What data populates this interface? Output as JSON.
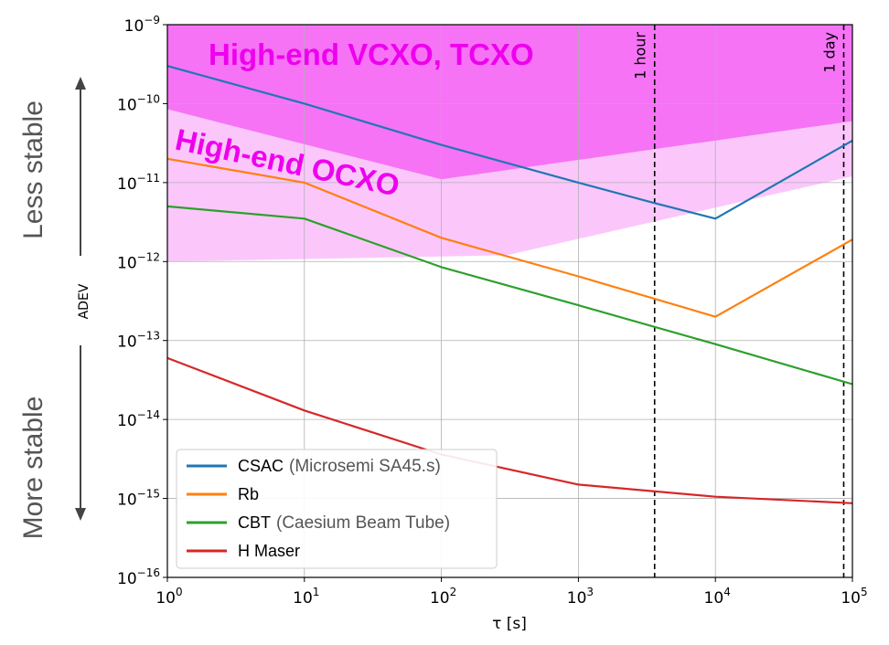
{
  "chart_data": {
    "type": "line",
    "xlabel": "τ [s]",
    "ylabel": "ADEV",
    "x_scale": "log",
    "y_scale": "log",
    "xlim": [
      1,
      100000
    ],
    "ylim": [
      1e-16,
      1e-09
    ],
    "grid": true,
    "legend_position": "lower-left",
    "x_ticks": [
      1,
      10,
      100,
      1000,
      10000,
      100000
    ],
    "x_tick_labels": [
      {
        "base": "10",
        "exp": "0"
      },
      {
        "base": "10",
        "exp": "1"
      },
      {
        "base": "10",
        "exp": "2"
      },
      {
        "base": "10",
        "exp": "3"
      },
      {
        "base": "10",
        "exp": "4"
      },
      {
        "base": "10",
        "exp": "5"
      }
    ],
    "y_ticks": [
      1e-16,
      1e-15,
      1e-14,
      1e-13,
      1e-12,
      1e-11,
      1e-10,
      1e-09
    ],
    "y_tick_labels": [
      {
        "base": "10",
        "exp": "−16"
      },
      {
        "base": "10",
        "exp": "−15"
      },
      {
        "base": "10",
        "exp": "−14"
      },
      {
        "base": "10",
        "exp": "−13"
      },
      {
        "base": "10",
        "exp": "−12"
      },
      {
        "base": "10",
        "exp": "−11"
      },
      {
        "base": "10",
        "exp": "−10"
      },
      {
        "base": "10",
        "exp": "−9"
      }
    ],
    "series": [
      {
        "name": "CSAC",
        "legend_note": "(Microsemi SA45.s)",
        "color": "#1f77b4",
        "x": [
          1,
          10,
          100,
          1000,
          3600,
          10000,
          100000
        ],
        "y": [
          3e-10,
          1e-10,
          3e-11,
          1e-11,
          5.5e-12,
          3.5e-12,
          3.4e-11
        ]
      },
      {
        "name": "Rb",
        "legend_note": "",
        "color": "#ff7f0e",
        "x": [
          1,
          10,
          100,
          1000,
          10000,
          100000
        ],
        "y": [
          2e-11,
          1e-11,
          2e-12,
          6.5e-13,
          2e-13,
          1.9e-12
        ]
      },
      {
        "name": "CBT",
        "legend_note": "(Caesium Beam Tube)",
        "color": "#2ca02c",
        "x": [
          1,
          10,
          100,
          1000,
          10000,
          100000
        ],
        "y": [
          5e-12,
          3.5e-12,
          8.5e-13,
          2.8e-13,
          9e-14,
          2.8e-14
        ]
      },
      {
        "name": "H Maser",
        "legend_note": "",
        "color": "#d62728",
        "x": [
          1,
          10,
          100,
          1000,
          10000,
          100000
        ],
        "y": [
          6e-14,
          1.3e-14,
          3.6e-15,
          1.5e-15,
          1.05e-15,
          8.7e-16
        ]
      }
    ],
    "regions": [
      {
        "label": "High-end VCXO, TCXO",
        "color": "#ee00ee",
        "polygon": [
          [
            1,
            1e-09
          ],
          [
            100000,
            1e-09
          ],
          [
            100000,
            6e-11
          ],
          [
            100,
            1.1e-11
          ],
          [
            1,
            8.5e-11
          ]
        ]
      },
      {
        "label": "High-end OCXO",
        "color": "#ee00ee",
        "polygon": [
          [
            1,
            8.5e-11
          ],
          [
            100,
            1.1e-11
          ],
          [
            100000,
            6e-11
          ],
          [
            100000,
            1e-09
          ],
          [
            100000,
            1.2e-11
          ],
          [
            300,
            1.2e-12
          ],
          [
            1,
            1e-12
          ]
        ]
      }
    ],
    "vlines": [
      {
        "label": "1 hour",
        "x": 3600
      },
      {
        "label": "1 day",
        "x": 86400
      }
    ],
    "side_labels": {
      "top": "Less stable",
      "bottom": "More stable"
    }
  }
}
